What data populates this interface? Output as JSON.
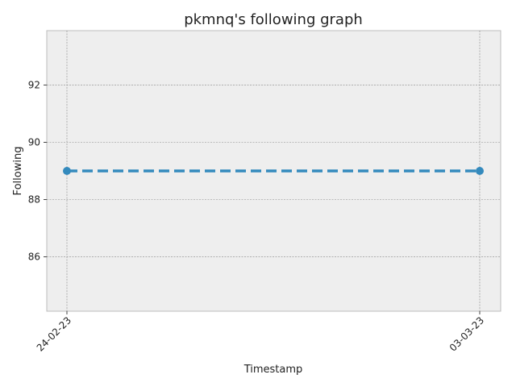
{
  "chart_data": {
    "type": "line",
    "title": "pkmnq's following graph",
    "xlabel": "Timestamp",
    "ylabel": "Following",
    "x": [
      "24-02-23",
      "03-03-23"
    ],
    "series": [
      {
        "values": [
          89,
          89
        ]
      }
    ],
    "ylim": [
      84.1,
      93.9
    ],
    "yticks": [
      86,
      88,
      90,
      92
    ],
    "grid": true,
    "line_style": "dashed",
    "marker": "circle",
    "colors": {
      "line": "#348abd",
      "plot_background": "#eeeeee",
      "grid": "#888888",
      "frame": "#bcbcbc"
    }
  }
}
